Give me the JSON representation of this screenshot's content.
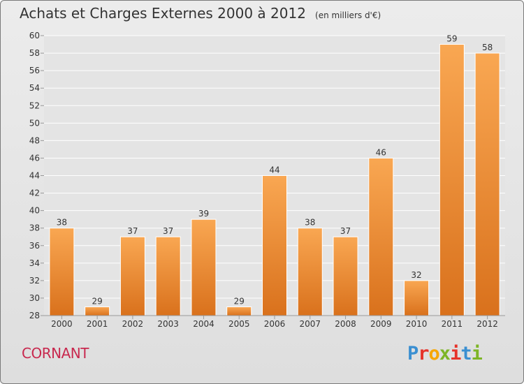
{
  "chart_data": {
    "type": "bar",
    "title": "Achats et Charges Externes 2000 à 2012",
    "unit": "(en milliers d'€)",
    "categories": [
      "2000",
      "2001",
      "2002",
      "2003",
      "2004",
      "2005",
      "2006",
      "2007",
      "2008",
      "2009",
      "2010",
      "2011",
      "2012"
    ],
    "values": [
      38,
      29,
      37,
      37,
      39,
      29,
      44,
      38,
      37,
      46,
      32,
      59,
      58
    ],
    "value_labels": [
      "38",
      "29",
      "37",
      "37",
      "39",
      "29",
      "44",
      "38",
      "37",
      "46",
      "32",
      "59",
      "58"
    ],
    "ylim": [
      28,
      60
    ],
    "yticks": [
      "28",
      "30",
      "32",
      "34",
      "36",
      "38",
      "40",
      "42",
      "44",
      "46",
      "48",
      "50",
      "52",
      "54",
      "56",
      "58",
      "60"
    ],
    "grid": true,
    "bar_color_top": "#f9a752",
    "bar_color_bottom": "#d9711c"
  },
  "footer": {
    "town": "CORNANT",
    "logo_letters": [
      "P",
      "r",
      "o",
      "x",
      "i",
      "t",
      "i"
    ],
    "logo_colors": [
      "#3a8fd1",
      "#e6332a",
      "#f7a600",
      "#7db526",
      "#e6332a",
      "#3a8fd1",
      "#7db526"
    ]
  }
}
